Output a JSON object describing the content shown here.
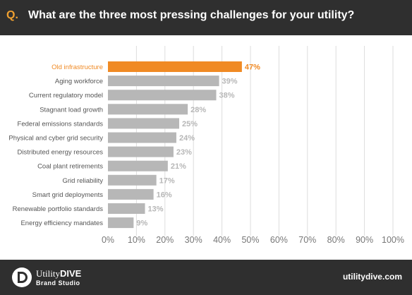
{
  "header": {
    "prefix": "Q.",
    "question": "What are the three most pressing challenges for your utility?"
  },
  "footer": {
    "brand_part1": "Utility",
    "brand_part2": "DIVE",
    "brand_sub": "Brand Studio",
    "site": "utilitydive.com"
  },
  "colors": {
    "background": "#ffffff",
    "header_bg": "#2f2f2f",
    "accent": "#f08a24",
    "bar_gray": "#b7b7b7",
    "value_gray": "#b7b7b7",
    "label_gray": "#555555",
    "grid": "#dddddd"
  },
  "chart_data": {
    "type": "bar",
    "orientation": "horizontal",
    "title": "",
    "xlabel": "",
    "ylabel": "",
    "xlim": [
      0,
      100
    ],
    "grid": true,
    "categories": [
      "Old infrastructure",
      "Aging workforce",
      "Current regulatory model",
      "Stagnant load growth",
      "Federal emissions standards",
      "Physical and cyber grid security",
      "Distributed energy resources",
      "Coal plant retirements",
      "Grid reliability",
      "Smart grid deployments",
      "Renewable portfolio standards",
      "Energy efficiency mandates"
    ],
    "values": [
      47,
      39,
      38,
      28,
      25,
      24,
      23,
      21,
      17,
      16,
      13,
      9
    ],
    "value_labels": [
      "47%",
      "39%",
      "38%",
      "28%",
      "25%",
      "24%",
      "23%",
      "21%",
      "17%",
      "16%",
      "13%",
      "9%"
    ],
    "highlight_index": 0,
    "tick_values": [
      0,
      10,
      20,
      30,
      40,
      50,
      60,
      70,
      80,
      90,
      100
    ],
    "tick_labels": [
      "0%",
      "10%",
      "20%",
      "30%",
      "40%",
      "50%",
      "60%",
      "70%",
      "80%",
      "90%",
      "100%"
    ]
  }
}
